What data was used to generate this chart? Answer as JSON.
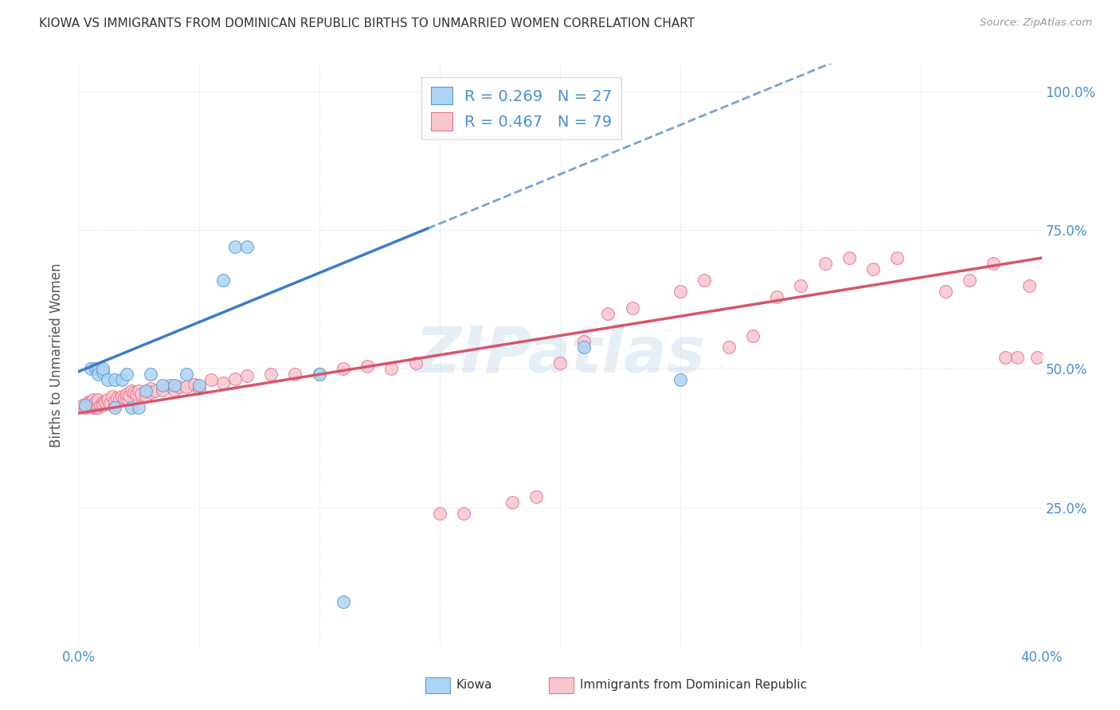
{
  "title": "KIOWA VS IMMIGRANTS FROM DOMINICAN REPUBLIC BIRTHS TO UNMARRIED WOMEN CORRELATION CHART",
  "source": "Source: ZipAtlas.com",
  "ylabel": "Births to Unmarried Women",
  "x_min": 0.0,
  "x_max": 0.4,
  "y_min": 0.0,
  "y_max": 1.05,
  "x_ticks": [
    0.0,
    0.05,
    0.1,
    0.15,
    0.2,
    0.25,
    0.3,
    0.35,
    0.4
  ],
  "y_ticks": [
    0.0,
    0.25,
    0.5,
    0.75,
    1.0
  ],
  "y_tick_labels_right": [
    "",
    "25.0%",
    "50.0%",
    "75.0%",
    "100.0%"
  ],
  "kiowa_color": "#ADD4F5",
  "kiowa_edge_color": "#5B9BD5",
  "dr_color": "#F9C6D0",
  "dr_edge_color": "#E8768C",
  "kiowa_line_color": "#3A7DC9",
  "dr_line_color": "#D9546A",
  "kiowa_R": 0.269,
  "kiowa_N": 27,
  "dr_R": 0.467,
  "dr_N": 79,
  "legend_label_color": "#4A8FD4",
  "background_color": "#FFFFFF",
  "grid_color": "#DDDDDD",
  "watermark": "ZIPatlas",
  "watermark_color": "#B8D0E8",
  "watermark_alpha": 0.35,
  "kiowa_scatter_x": [
    0.003,
    0.005,
    0.007,
    0.008,
    0.008,
    0.01,
    0.01,
    0.012,
    0.015,
    0.015,
    0.018,
    0.02,
    0.022,
    0.025,
    0.028,
    0.03,
    0.035,
    0.04,
    0.045,
    0.05,
    0.06,
    0.065,
    0.07,
    0.1,
    0.11,
    0.21,
    0.25
  ],
  "kiowa_scatter_y": [
    0.435,
    0.5,
    0.5,
    0.5,
    0.49,
    0.495,
    0.5,
    0.48,
    0.48,
    0.43,
    0.48,
    0.49,
    0.43,
    0.43,
    0.46,
    0.49,
    0.47,
    0.47,
    0.49,
    0.47,
    0.66,
    0.72,
    0.72,
    0.49,
    0.08,
    0.54,
    0.48
  ],
  "dr_scatter_x": [
    0.002,
    0.003,
    0.004,
    0.005,
    0.005,
    0.006,
    0.006,
    0.007,
    0.007,
    0.008,
    0.008,
    0.009,
    0.01,
    0.01,
    0.011,
    0.012,
    0.013,
    0.014,
    0.015,
    0.015,
    0.016,
    0.017,
    0.018,
    0.019,
    0.02,
    0.02,
    0.021,
    0.022,
    0.023,
    0.024,
    0.025,
    0.026,
    0.028,
    0.03,
    0.03,
    0.032,
    0.035,
    0.038,
    0.04,
    0.042,
    0.045,
    0.048,
    0.05,
    0.055,
    0.06,
    0.065,
    0.07,
    0.08,
    0.09,
    0.1,
    0.11,
    0.12,
    0.13,
    0.14,
    0.15,
    0.16,
    0.18,
    0.19,
    0.2,
    0.21,
    0.22,
    0.23,
    0.25,
    0.26,
    0.27,
    0.28,
    0.29,
    0.3,
    0.31,
    0.32,
    0.33,
    0.34,
    0.36,
    0.37,
    0.38,
    0.385,
    0.39,
    0.395,
    0.398
  ],
  "dr_scatter_y": [
    0.435,
    0.43,
    0.44,
    0.44,
    0.435,
    0.43,
    0.445,
    0.43,
    0.44,
    0.43,
    0.445,
    0.435,
    0.44,
    0.435,
    0.44,
    0.445,
    0.438,
    0.45,
    0.435,
    0.442,
    0.448,
    0.445,
    0.45,
    0.447,
    0.448,
    0.455,
    0.452,
    0.46,
    0.457,
    0.455,
    0.46,
    0.455,
    0.452,
    0.465,
    0.458,
    0.46,
    0.462,
    0.47,
    0.462,
    0.468,
    0.468,
    0.472,
    0.465,
    0.48,
    0.475,
    0.482,
    0.488,
    0.49,
    0.49,
    0.49,
    0.5,
    0.505,
    0.5,
    0.51,
    0.24,
    0.24,
    0.26,
    0.27,
    0.51,
    0.55,
    0.6,
    0.61,
    0.64,
    0.66,
    0.54,
    0.56,
    0.63,
    0.65,
    0.69,
    0.7,
    0.68,
    0.7,
    0.64,
    0.66,
    0.69,
    0.52,
    0.52,
    0.65,
    0.52
  ]
}
